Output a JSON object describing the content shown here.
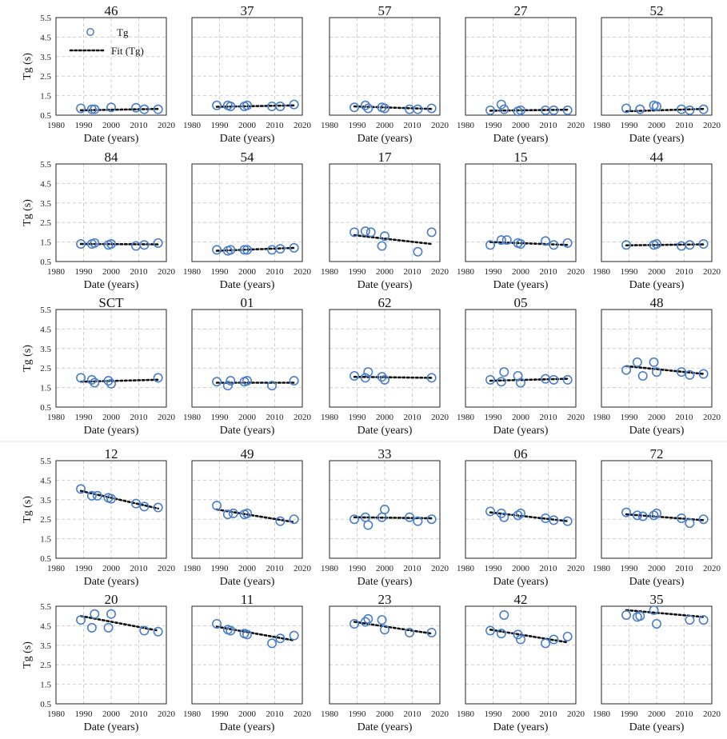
{
  "legend": {
    "points_label": "Tg",
    "fit_label": "Fit (Tg)"
  },
  "colors": {
    "points": "#4a7ec9",
    "fit": "#111111",
    "grid": "#cfcfcf",
    "frame": "#222222"
  },
  "axes": {
    "xlabel": "Date (years)",
    "ylabel": "Tg (s)",
    "xlim": [
      1980,
      2020
    ],
    "ylim": [
      0.5,
      5.5
    ],
    "xticks": [
      1980,
      1990,
      2000,
      2010,
      2020
    ],
    "yticks": [
      0.5,
      1.5,
      2.5,
      3.5,
      4.5,
      5.5
    ]
  },
  "chart_data": [
    {
      "type": "scatter",
      "title": "46",
      "x": [
        1989,
        1993,
        1994,
        2000,
        2009,
        2012,
        2017
      ],
      "y": [
        0.85,
        0.8,
        0.8,
        0.9,
        0.88,
        0.8,
        0.8
      ],
      "fit": [
        [
          1989,
          0.75
        ],
        [
          2017,
          0.82
        ]
      ]
    },
    {
      "type": "scatter",
      "title": "37",
      "x": [
        1989,
        1993,
        1994,
        1999,
        2000,
        2009,
        2012,
        2017
      ],
      "y": [
        1.0,
        1.0,
        0.95,
        0.95,
        1.0,
        0.95,
        0.95,
        1.05
      ],
      "fit": [
        [
          1989,
          0.93
        ],
        [
          2017,
          1.0
        ]
      ]
    },
    {
      "type": "scatter",
      "title": "57",
      "x": [
        1989,
        1993,
        1994,
        1999,
        2000,
        2009,
        2012,
        2017
      ],
      "y": [
        0.9,
        1.0,
        0.85,
        0.9,
        0.85,
        0.8,
        0.8,
        0.85
      ],
      "fit": [
        [
          1989,
          0.95
        ],
        [
          2017,
          0.82
        ]
      ]
    },
    {
      "type": "scatter",
      "title": "27",
      "x": [
        1989,
        1993,
        1994,
        1999,
        2000,
        2009,
        2012,
        2017
      ],
      "y": [
        0.75,
        1.05,
        0.8,
        0.7,
        0.75,
        0.75,
        0.75,
        0.75
      ],
      "fit": [
        [
          1989,
          0.73
        ],
        [
          2017,
          0.78
        ]
      ]
    },
    {
      "type": "scatter",
      "title": "52",
      "x": [
        1989,
        1994,
        1999,
        2000,
        2009,
        2012,
        2017
      ],
      "y": [
        0.85,
        0.8,
        1.0,
        0.95,
        0.8,
        0.75,
        0.8
      ],
      "fit": [
        [
          1989,
          0.7
        ],
        [
          2017,
          0.82
        ]
      ]
    },
    {
      "type": "scatter",
      "title": "84",
      "x": [
        1989,
        1993,
        1994,
        1999,
        2000,
        2009,
        2012,
        2017
      ],
      "y": [
        1.4,
        1.4,
        1.45,
        1.35,
        1.4,
        1.3,
        1.35,
        1.45
      ],
      "fit": [
        [
          1989,
          1.4
        ],
        [
          2017,
          1.38
        ]
      ]
    },
    {
      "type": "scatter",
      "title": "54",
      "x": [
        1989,
        1993,
        1994,
        1999,
        2000,
        2009,
        2012,
        2017
      ],
      "y": [
        1.1,
        1.05,
        1.1,
        1.1,
        1.1,
        1.1,
        1.15,
        1.2
      ],
      "fit": [
        [
          1989,
          1.05
        ],
        [
          2017,
          1.2
        ]
      ]
    },
    {
      "type": "scatter",
      "title": "17",
      "x": [
        1989,
        1993,
        1995,
        1999,
        2000,
        2012,
        2017
      ],
      "y": [
        2.0,
        2.05,
        2.0,
        1.3,
        1.8,
        1.0,
        2.0
      ],
      "fit": [
        [
          1989,
          1.85
        ],
        [
          2017,
          1.4
        ]
      ]
    },
    {
      "type": "scatter",
      "title": "15",
      "x": [
        1989,
        1993,
        1995,
        1999,
        2000,
        2009,
        2012,
        2017
      ],
      "y": [
        1.35,
        1.6,
        1.6,
        1.45,
        1.4,
        1.55,
        1.35,
        1.45
      ],
      "fit": [
        [
          1989,
          1.5
        ],
        [
          2017,
          1.35
        ]
      ]
    },
    {
      "type": "scatter",
      "title": "44",
      "x": [
        1989,
        1999,
        2000,
        2009,
        2012,
        2017
      ],
      "y": [
        1.35,
        1.35,
        1.4,
        1.3,
        1.35,
        1.4
      ],
      "fit": [
        [
          1989,
          1.33
        ],
        [
          2017,
          1.38
        ]
      ]
    },
    {
      "type": "scatter",
      "title": "SCT",
      "x": [
        1989,
        1993,
        1994,
        1999,
        2000,
        2017
      ],
      "y": [
        2.0,
        1.9,
        1.75,
        1.85,
        1.7,
        2.0
      ],
      "fit": [
        [
          1989,
          1.8
        ],
        [
          2017,
          1.9
        ]
      ]
    },
    {
      "type": "scatter",
      "title": "01",
      "x": [
        1989,
        1993,
        1994,
        1999,
        2000,
        2009,
        2017
      ],
      "y": [
        1.8,
        1.6,
        1.85,
        1.8,
        1.85,
        1.6,
        1.85
      ],
      "fit": [
        [
          1989,
          1.75
        ],
        [
          2017,
          1.75
        ]
      ]
    },
    {
      "type": "scatter",
      "title": "62",
      "x": [
        1989,
        1993,
        1994,
        1999,
        2000,
        2017
      ],
      "y": [
        2.1,
        2.0,
        2.3,
        2.05,
        1.9,
        2.0
      ],
      "fit": [
        [
          1989,
          2.05
        ],
        [
          2017,
          2.0
        ]
      ]
    },
    {
      "type": "scatter",
      "title": "05",
      "x": [
        1989,
        1993,
        1994,
        1999,
        2000,
        2009,
        2012,
        2017
      ],
      "y": [
        1.9,
        1.8,
        2.3,
        2.1,
        1.75,
        1.95,
        1.9,
        1.9
      ],
      "fit": [
        [
          1989,
          1.85
        ],
        [
          2017,
          1.95
        ]
      ]
    },
    {
      "type": "scatter",
      "title": "48",
      "x": [
        1989,
        1993,
        1995,
        1999,
        2000,
        2009,
        2012,
        2017
      ],
      "y": [
        2.4,
        2.8,
        2.1,
        2.8,
        2.3,
        2.3,
        2.15,
        2.2
      ],
      "fit": [
        [
          1989,
          2.6
        ],
        [
          2017,
          2.2
        ]
      ]
    },
    {
      "type": "scatter",
      "title": "12",
      "x": [
        1989,
        1993,
        1995,
        1999,
        2000,
        2009,
        2012,
        2017
      ],
      "y": [
        4.05,
        3.7,
        3.7,
        3.6,
        3.55,
        3.3,
        3.15,
        3.1
      ],
      "fit": [
        [
          1989,
          3.95
        ],
        [
          2017,
          3.05
        ]
      ]
    },
    {
      "type": "scatter",
      "title": "49",
      "x": [
        1989,
        1993,
        1995,
        1999,
        2000,
        2012,
        2017
      ],
      "y": [
        3.2,
        2.75,
        2.8,
        2.75,
        2.8,
        2.4,
        2.5
      ],
      "fit": [
        [
          1989,
          3.0
        ],
        [
          2017,
          2.35
        ]
      ]
    },
    {
      "type": "scatter",
      "title": "33",
      "x": [
        1989,
        1993,
        1994,
        1999,
        2000,
        2009,
        2012,
        2017
      ],
      "y": [
        2.5,
        2.6,
        2.2,
        2.6,
        3.0,
        2.6,
        2.4,
        2.5
      ],
      "fit": [
        [
          1989,
          2.6
        ],
        [
          2017,
          2.55
        ]
      ]
    },
    {
      "type": "scatter",
      "title": "06",
      "x": [
        1989,
        1993,
        1994,
        1999,
        2000,
        2009,
        2012,
        2017
      ],
      "y": [
        2.9,
        2.8,
        2.6,
        2.7,
        2.8,
        2.55,
        2.45,
        2.4
      ],
      "fit": [
        [
          1989,
          2.85
        ],
        [
          2017,
          2.4
        ]
      ]
    },
    {
      "type": "scatter",
      "title": "72",
      "x": [
        1989,
        1993,
        1995,
        1999,
        2000,
        2009,
        2012,
        2017
      ],
      "y": [
        2.85,
        2.7,
        2.65,
        2.7,
        2.8,
        2.55,
        2.3,
        2.5
      ],
      "fit": [
        [
          1989,
          2.75
        ],
        [
          2017,
          2.45
        ]
      ]
    },
    {
      "type": "scatter",
      "title": "20",
      "x": [
        1989,
        1993,
        1994,
        1999,
        2000,
        2012,
        2017
      ],
      "y": [
        4.8,
        4.4,
        5.1,
        4.4,
        5.1,
        4.25,
        4.2
      ],
      "fit": [
        [
          1989,
          5.0
        ],
        [
          2017,
          4.25
        ]
      ]
    },
    {
      "type": "scatter",
      "title": "11",
      "x": [
        1989,
        1993,
        1994,
        1999,
        2000,
        2009,
        2012,
        2017
      ],
      "y": [
        4.6,
        4.3,
        4.25,
        4.1,
        4.05,
        3.6,
        3.85,
        4.0
      ],
      "fit": [
        [
          1989,
          4.45
        ],
        [
          2017,
          3.75
        ]
      ]
    },
    {
      "type": "scatter",
      "title": "23",
      "x": [
        1989,
        1993,
        1994,
        1999,
        2000,
        2009,
        2017
      ],
      "y": [
        4.6,
        4.7,
        4.85,
        4.8,
        4.3,
        4.15,
        4.15
      ],
      "fit": [
        [
          1989,
          4.7
        ],
        [
          2017,
          4.1
        ]
      ]
    },
    {
      "type": "scatter",
      "title": "42",
      "x": [
        1989,
        1993,
        1994,
        1999,
        2000,
        2009,
        2012,
        2017
      ],
      "y": [
        4.25,
        4.1,
        5.05,
        4.05,
        3.8,
        3.6,
        3.8,
        3.95
      ],
      "fit": [
        [
          1989,
          4.3
        ],
        [
          2017,
          3.65
        ]
      ]
    },
    {
      "type": "scatter",
      "title": "35",
      "x": [
        1989,
        1993,
        1994,
        1999,
        2000,
        2012,
        2017
      ],
      "y": [
        5.05,
        4.95,
        5.0,
        5.3,
        4.6,
        4.8,
        4.8
      ],
      "fit": [
        [
          1989,
          5.3
        ],
        [
          2017,
          4.95
        ]
      ]
    }
  ]
}
